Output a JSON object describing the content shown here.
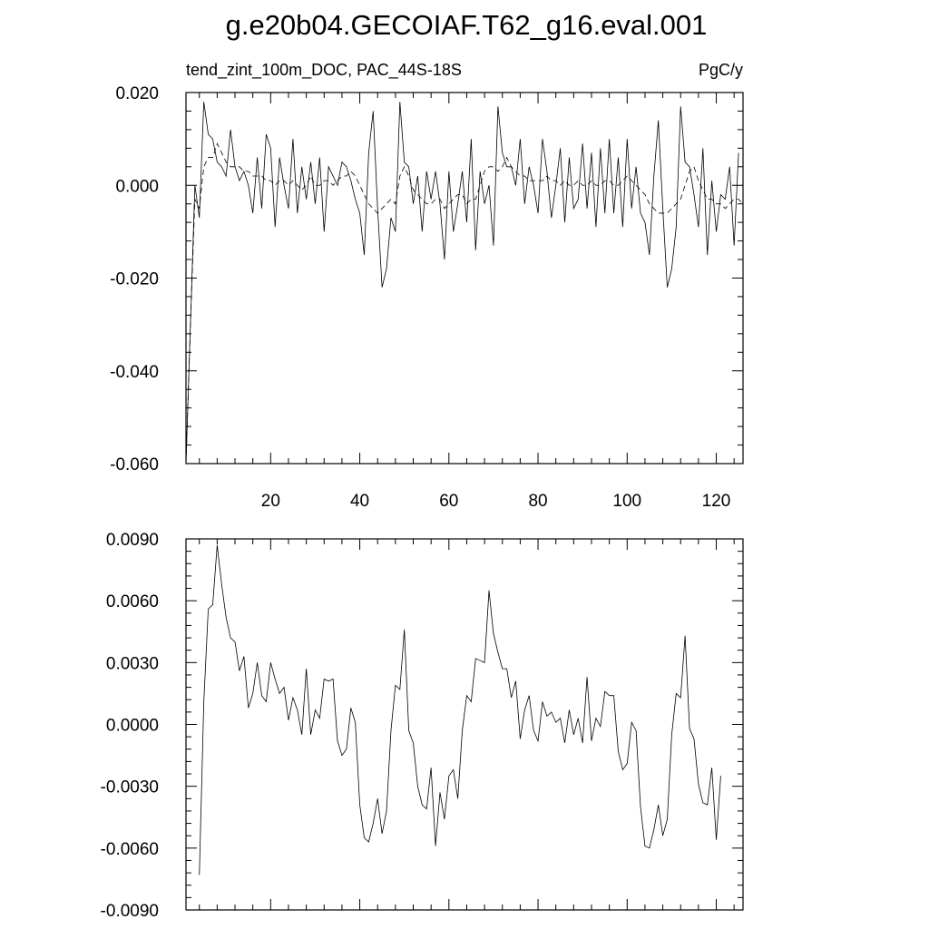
{
  "title": "g.e20b04.GECOIAF.T62_g16.eval.001",
  "chart_data": [
    {
      "type": "line",
      "left_label": "tend_zint_100m_DOC, PAC_44S-18S",
      "right_label": "PgC/y",
      "xlim": [
        1,
        126
      ],
      "ylim": [
        -0.06,
        0.02
      ],
      "x_ticks": [
        20,
        40,
        60,
        80,
        100,
        120
      ],
      "x_tick_labels": [
        "20",
        "40",
        "60",
        "80",
        "100",
        "120"
      ],
      "y_ticks": [
        -0.06,
        -0.04,
        -0.02,
        0.0,
        0.02
      ],
      "y_tick_labels": [
        "-0.060",
        "-0.040",
        "-0.020",
        "0.000",
        "0.020"
      ],
      "x_start": 1,
      "series": [
        {
          "style": "solid",
          "values": [
            -0.06,
            -0.03,
            0.0,
            -0.007,
            0.018,
            0.011,
            0.01,
            0.005,
            0.004,
            0.002,
            0.012,
            0.004,
            0.001,
            0.003,
            0.0,
            -0.006,
            0.006,
            -0.005,
            0.011,
            0.008,
            -0.009,
            0.006,
            0.0,
            -0.005,
            0.01,
            -0.006,
            0.004,
            -0.003,
            0.005,
            -0.004,
            0.006,
            -0.01,
            0.004,
            0.002,
            0.0,
            0.005,
            0.004,
            0.001,
            -0.003,
            -0.006,
            -0.015,
            0.007,
            0.016,
            -0.005,
            -0.022,
            -0.018,
            -0.007,
            -0.01,
            0.018,
            0.005,
            0.004,
            -0.004,
            0.002,
            -0.01,
            0.003,
            -0.003,
            0.003,
            -0.004,
            -0.016,
            0.003,
            -0.01,
            -0.004,
            0.003,
            -0.008,
            0.01,
            -0.014,
            0.003,
            -0.004,
            0.0,
            -0.013,
            0.017,
            0.007,
            0.004,
            0.004,
            0.0,
            0.01,
            -0.004,
            0.004,
            0.0,
            -0.006,
            0.01,
            0.003,
            -0.007,
            0.0,
            0.008,
            -0.008,
            0.006,
            -0.005,
            -0.003,
            0.009,
            -0.005,
            0.007,
            -0.009,
            0.008,
            -0.006,
            0.01,
            -0.006,
            0.006,
            -0.009,
            0.01,
            -0.005,
            0.004,
            -0.006,
            -0.008,
            -0.015,
            0.002,
            0.014,
            -0.005,
            -0.022,
            -0.018,
            -0.009,
            0.017,
            0.005,
            0.004,
            -0.002,
            -0.009,
            0.008,
            -0.015,
            0.001,
            -0.01,
            -0.002,
            -0.003,
            0.004,
            -0.013,
            0.007
          ],
          "name": ""
        },
        {
          "style": "dashed",
          "values": [
            -0.06,
            -0.03,
            -0.003,
            -0.005,
            0.004,
            0.006,
            0.006,
            0.009,
            0.007,
            0.005,
            0.004,
            0.004,
            0.004,
            0.003,
            0.003,
            0.002,
            0.002,
            0.002,
            0.001,
            0.001,
            0.0,
            0.001,
            0.001,
            0.0,
            0.001,
            0.0,
            -0.001,
            0.0,
            0.002,
            0.0,
            0.0,
            0.001,
            0.001,
            0.0,
            0.001,
            0.002,
            0.002,
            0.003,
            0.002,
            0.0,
            -0.002,
            -0.004,
            -0.005,
            -0.006,
            -0.005,
            -0.004,
            -0.003,
            -0.004,
            0.002,
            0.004,
            0.002,
            -0.001,
            -0.002,
            -0.003,
            -0.004,
            -0.004,
            -0.003,
            -0.003,
            -0.005,
            -0.004,
            -0.003,
            -0.002,
            -0.002,
            -0.004,
            -0.003,
            -0.003,
            0.0,
            0.003,
            0.004,
            0.004,
            0.003,
            0.004,
            0.006,
            0.004,
            0.003,
            0.002,
            0.002,
            0.001,
            0.001,
            0.001,
            0.001,
            0.002,
            0.001,
            0.001,
            0.0,
            0.001,
            0.0,
            0.0,
            0.001,
            0.0,
            0.0,
            0.001,
            0.0,
            0.0,
            0.001,
            0.001,
            0.0,
            0.0,
            0.001,
            0.002,
            0.001,
            0.0,
            -0.001,
            -0.002,
            -0.004,
            -0.005,
            -0.006,
            -0.006,
            -0.006,
            -0.005,
            -0.004,
            -0.003,
            0.0,
            0.003,
            0.004,
            0.001,
            -0.001,
            -0.003,
            -0.003,
            -0.004,
            -0.004,
            -0.005,
            -0.004,
            -0.003,
            -0.003,
            -0.004
          ],
          "name": ""
        }
      ]
    },
    {
      "type": "line",
      "xlim": [
        1,
        126
      ],
      "ylim": [
        -0.009,
        0.009
      ],
      "x_ticks": [
        20,
        40,
        60,
        80,
        100,
        120
      ],
      "x_tick_labels": [],
      "y_ticks": [
        -0.009,
        -0.006,
        -0.003,
        0.0,
        0.003,
        0.006,
        0.009
      ],
      "y_tick_labels": [
        "-0.0090",
        "-0.0060",
        "-0.0030",
        "0.0000",
        "0.0030",
        "0.0060",
        "0.0090"
      ],
      "x_start": 4,
      "series": [
        {
          "style": "solid",
          "values": [
            -0.0073,
            0.0011,
            0.0056,
            0.0058,
            0.0087,
            0.0068,
            0.0052,
            0.0042,
            0.004,
            0.0026,
            0.0033,
            0.0008,
            0.0015,
            0.003,
            0.0014,
            0.0011,
            0.003,
            0.0022,
            0.0015,
            0.0018,
            0.0002,
            0.0013,
            0.0007,
            -0.0005,
            0.0027,
            -0.0005,
            0.0007,
            0.0003,
            0.0022,
            0.0021,
            0.0022,
            -0.0008,
            -0.0015,
            -0.0012,
            0.0008,
            0.0001,
            -0.0039,
            -0.0055,
            -0.0057,
            -0.0048,
            -0.0036,
            -0.0053,
            -0.0042,
            -0.0003,
            0.0019,
            0.0017,
            0.0046,
            -0.0003,
            -0.0009,
            -0.003,
            -0.0039,
            -0.0041,
            -0.0021,
            -0.0059,
            -0.0033,
            -0.0046,
            -0.0025,
            -0.0022,
            -0.0036,
            -0.0003,
            0.0014,
            0.0011,
            0.0032,
            0.0031,
            0.003,
            0.0065,
            0.0044,
            0.0035,
            0.0027,
            0.0027,
            0.0013,
            0.0021,
            -0.0007,
            0.0007,
            0.0014,
            -0.0003,
            -0.0008,
            0.0011,
            0.0004,
            0.0006,
            0.0001,
            0.0003,
            -0.0009,
            0.0007,
            -0.0005,
            0.0003,
            -0.0009,
            0.0023,
            -0.0008,
            0.0003,
            -0.0001,
            0.0016,
            0.0014,
            0.0014,
            -0.0013,
            -0.0022,
            -0.0019,
            0.0001,
            -0.0003,
            -0.004,
            -0.0059,
            -0.006,
            -0.0051,
            -0.0039,
            -0.0054,
            -0.0046,
            -0.0005,
            0.0015,
            0.0013,
            0.0043,
            -0.0002,
            -0.0007,
            -0.0029,
            -0.0038,
            -0.0039,
            -0.0021,
            -0.0056,
            -0.0025
          ],
          "name": ""
        }
      ]
    }
  ]
}
